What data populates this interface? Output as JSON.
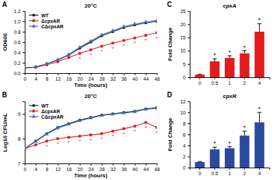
{
  "chart_data": [
    {
      "type": "line",
      "panel": "A",
      "title": "20°C",
      "x_label": "Time (hours)",
      "y_label": "OD600",
      "x": [
        0,
        4,
        8,
        12,
        16,
        20,
        24,
        28,
        32,
        36,
        40,
        44,
        48
      ],
      "xlim": [
        0,
        48
      ],
      "xticks": [
        0,
        4,
        8,
        12,
        16,
        20,
        24,
        28,
        32,
        36,
        40,
        44,
        48
      ],
      "ylim": [
        0,
        1.2
      ],
      "yticks": [
        {
          "value": 0,
          "label": "0.0"
        },
        {
          "value": 0.2,
          "label": "0.2"
        },
        {
          "value": 0.4,
          "label": "0.4"
        },
        {
          "value": 0.6,
          "label": "0.6"
        },
        {
          "value": 0.8,
          "label": "0.8"
        },
        {
          "value": 1,
          "label": "1.0"
        },
        {
          "value": 1.2,
          "label": "1.2"
        }
      ],
      "legend": "upper left",
      "series": [
        {
          "name": "WT",
          "color": "#1a1a1a",
          "marker": "circle",
          "values": [
            0.1,
            0.12,
            0.18,
            0.25,
            0.35,
            0.48,
            0.6,
            0.72,
            0.8,
            0.88,
            0.93,
            0.97,
            1.0
          ]
        },
        {
          "name": "ΔcpxAR",
          "color": "#e41a1c",
          "marker": "square",
          "values": [
            0.1,
            0.11,
            0.16,
            0.22,
            0.3,
            0.38,
            0.45,
            0.52,
            0.58,
            0.63,
            0.68,
            0.73,
            0.78
          ],
          "point_labels": [
            null,
            null,
            null,
            null,
            null,
            "*",
            "*",
            "*",
            "*",
            "*",
            "*",
            "*",
            "*"
          ]
        },
        {
          "name": "CΔcpxAR",
          "color": "#3a6fc4",
          "marker": "triangle",
          "values": [
            0.1,
            0.12,
            0.18,
            0.26,
            0.36,
            0.5,
            0.62,
            0.74,
            0.82,
            0.9,
            0.95,
            0.99,
            1.02
          ]
        }
      ]
    },
    {
      "type": "line",
      "panel": "B",
      "title": "20°C",
      "x_label": "Time (hours)",
      "y_label": "Log10 CFU/mL",
      "x": [
        0,
        4,
        8,
        12,
        16,
        20,
        24,
        28,
        32,
        36,
        40,
        44,
        48
      ],
      "xlim": [
        0,
        48
      ],
      "xticks": [
        0,
        4,
        8,
        12,
        16,
        20,
        24,
        28,
        32,
        36,
        40,
        44,
        48
      ],
      "ylim": [
        7,
        9.5
      ],
      "yticks": [
        7,
        8,
        9
      ],
      "legend": "upper left",
      "series": [
        {
          "name": "WT",
          "color": "#1a1a1a",
          "marker": "circle",
          "values": [
            7.6,
            7.9,
            8.2,
            8.45,
            8.6,
            8.75,
            8.85,
            8.95,
            9.0,
            9.05,
            9.1,
            9.2,
            9.25
          ]
        },
        {
          "name": "ΔcpxAR",
          "color": "#e41a1c",
          "marker": "square",
          "values": [
            7.6,
            7.75,
            7.9,
            8.0,
            8.05,
            8.1,
            8.15,
            8.2,
            8.3,
            8.4,
            8.5,
            8.65,
            8.45
          ],
          "point_labels": [
            null,
            null,
            "*",
            "*",
            "*",
            "*",
            "*",
            "*",
            "*",
            "*",
            "*",
            "*",
            "*"
          ]
        },
        {
          "name": "CΔcpxAR",
          "color": "#3a6fc4",
          "marker": "triangle",
          "values": [
            7.6,
            7.88,
            8.18,
            8.42,
            8.58,
            8.72,
            8.83,
            8.93,
            8.98,
            9.03,
            9.08,
            9.18,
            9.22
          ]
        }
      ]
    },
    {
      "type": "bar",
      "panel": "C",
      "title": "cpxA",
      "y_label": "Fold Change",
      "categories": [
        "0",
        "0.5",
        "1",
        "2",
        "4"
      ],
      "values": [
        1,
        6,
        7.3,
        9,
        17.2
      ],
      "errors": [
        0.1,
        1,
        0.8,
        1,
        3
      ],
      "point_labels": [
        null,
        "*",
        "*",
        "*",
        "*"
      ],
      "color": "#e41a1c",
      "ylim": [
        0,
        25
      ],
      "yticks": [
        0,
        5,
        10,
        15,
        20,
        25
      ]
    },
    {
      "type": "bar",
      "panel": "D",
      "title": "cpxR",
      "y_label": "Fold Change",
      "categories": [
        "0",
        "0.5",
        "1",
        "2",
        "4"
      ],
      "values": [
        1,
        3.3,
        3.5,
        5.8,
        8.2
      ],
      "errors": [
        0.1,
        0.4,
        0.3,
        0.8,
        1.8
      ],
      "point_labels": [
        null,
        "*",
        "*",
        "*",
        "*"
      ],
      "color": "#2b4a9e",
      "ylim": [
        0,
        12
      ],
      "yticks": [
        0,
        2,
        4,
        6,
        8,
        10,
        12
      ]
    }
  ]
}
